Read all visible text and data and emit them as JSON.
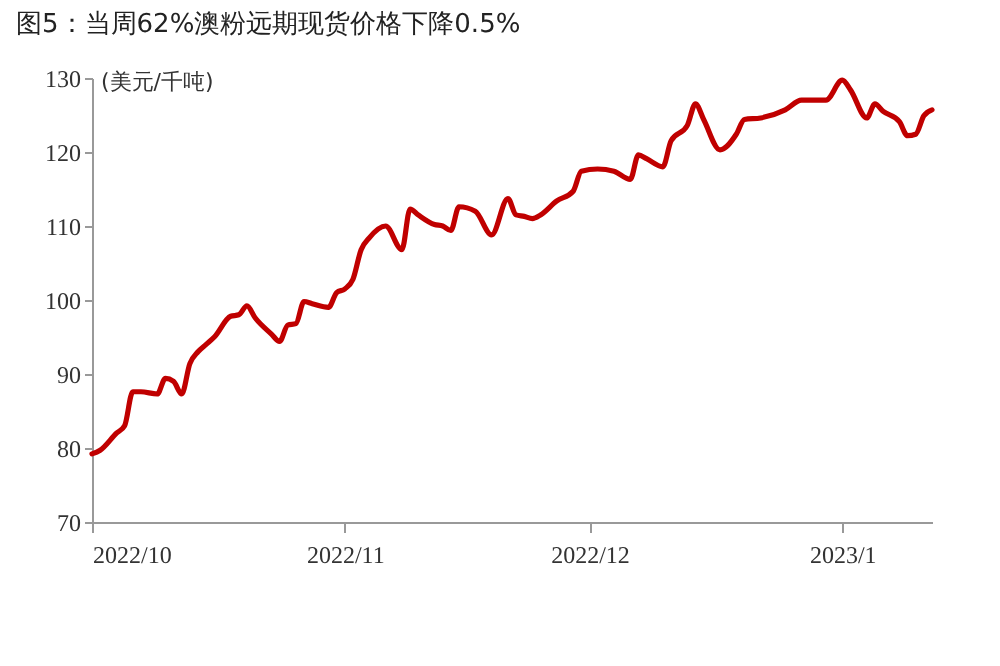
{
  "chart_data": {
    "type": "line",
    "title": "图5：当周62%澳粉远期现货价格下降0.5%",
    "ylabel": "(美元/千吨)",
    "x": [
      "2022-10-01",
      "2022-10-02",
      "2022-10-04",
      "2022-10-05",
      "2022-10-06",
      "2022-10-07",
      "2022-10-09",
      "2022-10-10",
      "2022-10-11",
      "2022-10-12",
      "2022-10-13",
      "2022-10-14",
      "2022-10-15",
      "2022-10-16",
      "2022-10-18",
      "2022-10-19",
      "2022-10-20",
      "2022-10-21",
      "2022-10-23",
      "2022-10-24",
      "2022-10-25",
      "2022-10-26",
      "2022-10-27",
      "2022-10-28",
      "2022-10-30",
      "2022-10-31",
      "2022-11-01",
      "2022-11-02",
      "2022-11-03",
      "2022-11-04",
      "2022-11-06",
      "2022-11-08",
      "2022-11-09",
      "2022-11-10",
      "2022-11-12",
      "2022-11-13",
      "2022-11-14",
      "2022-11-15",
      "2022-11-17",
      "2022-11-19",
      "2022-11-21",
      "2022-11-22",
      "2022-11-23",
      "2022-11-24",
      "2022-11-25",
      "2022-11-27",
      "2022-11-29",
      "2022-11-30",
      "2022-12-02",
      "2022-12-04",
      "2022-12-06",
      "2022-12-07",
      "2022-12-08",
      "2022-12-10",
      "2022-12-11",
      "2022-12-13",
      "2022-12-14",
      "2022-12-15",
      "2022-12-17",
      "2022-12-19",
      "2022-12-20",
      "2022-12-22",
      "2022-12-25",
      "2022-12-27",
      "2022-12-30",
      "2023-01-01",
      "2023-01-02",
      "2023-01-04",
      "2023-01-05",
      "2023-01-06",
      "2023-01-08",
      "2023-01-09",
      "2023-01-10",
      "2023-01-11",
      "2023-01-12"
    ],
    "series": [
      {
        "color": "#c00000",
        "values": [
          79.2,
          79.7,
          82,
          83,
          87.6,
          87.6,
          87.3,
          89.4,
          89,
          87.3,
          91.4,
          93,
          94,
          95,
          97.8,
          98,
          99.2,
          97.6,
          95.4,
          94.4,
          96.6,
          96.8,
          99.8,
          99.5,
          99,
          101,
          101.5,
          102.8,
          106.8,
          108.4,
          110,
          106.8,
          112.3,
          111.5,
          110.2,
          110,
          109.4,
          112.6,
          112,
          108.8,
          113.7,
          111.5,
          111.3,
          111,
          111.5,
          113.4,
          114.7,
          117.4,
          117.7,
          117.4,
          116.3,
          119.6,
          119.1,
          118,
          121.5,
          123.6,
          126.5,
          124.4,
          120.3,
          122.4,
          124.4,
          124.6,
          125.7,
          127,
          127,
          129.7,
          128.4,
          124.6,
          126.5,
          125.5,
          124.1,
          122.2,
          122.4,
          124.9,
          125.7
        ]
      }
    ],
    "xlim": [
      "2022-10-01",
      "2023-01-12"
    ],
    "xticks": [
      {
        "value": "2022-10-01",
        "label": "2022/10"
      },
      {
        "value": "2022-11-01",
        "label": "2022/11"
      },
      {
        "value": "2022-12-01",
        "label": "2022/12"
      },
      {
        "value": "2023-01-01",
        "label": "2023/1"
      }
    ],
    "ylim": [
      70,
      130
    ],
    "yticks": [
      70,
      80,
      90,
      100,
      110,
      120,
      130
    ]
  }
}
